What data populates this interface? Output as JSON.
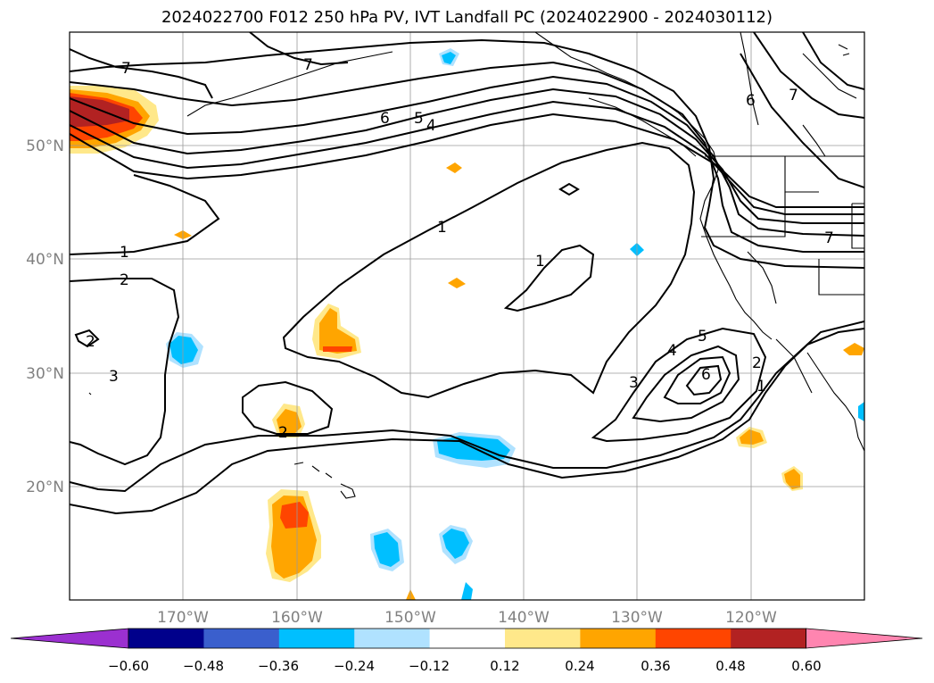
{
  "title": "2024022700 F012 250 hPa PV, IVT Landfall PC (2024022900 - 2024030112)",
  "lat_labels": [
    "50°N",
    "40°N",
    "30°N",
    "20°N"
  ],
  "lon_labels": [
    "170°W",
    "160°W",
    "150°W",
    "140°W",
    "130°W",
    "120°W"
  ],
  "contour_labels": [
    "7",
    "7",
    "6",
    "5",
    "4",
    "1",
    "1",
    "1",
    "2",
    "2",
    "3",
    "2",
    "3",
    "4",
    "5",
    "6",
    "2",
    "1",
    "6",
    "7",
    "7"
  ],
  "colorbar": {
    "ticks": [
      "−0.60",
      "−0.48",
      "−0.36",
      "−0.24",
      "−0.12",
      "0.12",
      "0.24",
      "0.36",
      "0.48",
      "0.60"
    ],
    "colors": [
      "#9b30d0",
      "#00008b",
      "#3a5fcd",
      "#00bfff",
      "#b0e2ff",
      "#ffffff",
      "#ffe88a",
      "#ffa500",
      "#ff4500",
      "#b22222",
      "#ff85b0"
    ]
  }
}
